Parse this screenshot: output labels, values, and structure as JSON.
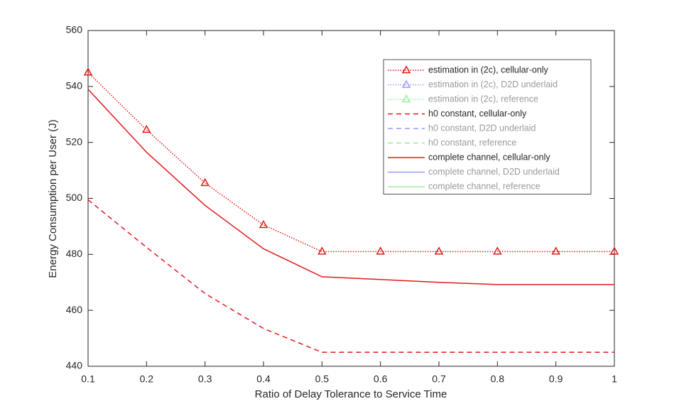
{
  "chart_data": {
    "type": "line",
    "xlabel": "Ratio of Delay Tolerance to Service Time",
    "ylabel": "Energy Consumption per User (J)",
    "x": [
      0.1,
      0.2,
      0.3,
      0.4,
      0.5,
      0.6,
      0.7,
      0.8,
      0.9,
      1
    ],
    "xlim": [
      0.1,
      1
    ],
    "xticks": [
      0.1,
      0.2,
      0.3,
      0.4,
      0.5,
      0.6,
      0.7,
      0.8,
      0.9,
      1
    ],
    "ylim": [
      440,
      560
    ],
    "yticks": [
      440,
      460,
      480,
      500,
      520,
      540,
      560
    ],
    "grid": false,
    "legend": "northeast",
    "series": [
      {
        "name": "estimation in (2c), cellular-only",
        "color": "#e31a1c",
        "linestyle": "dotted",
        "marker": "triangle",
        "visible": true,
        "values": [
          545,
          524.5,
          505.5,
          490.5,
          481,
          481,
          481,
          481,
          481,
          481
        ]
      },
      {
        "name": "estimation in (2c), D2D underlaid",
        "color": "#9999ff",
        "linestyle": "dotted",
        "marker": "triangle",
        "visible": false
      },
      {
        "name": "estimation in (2c), reference",
        "color": "#99ee99",
        "linestyle": "dotted",
        "marker": "triangle",
        "visible": false
      },
      {
        "name": "h0 constant, cellular-only",
        "color": "#e31a1c",
        "linestyle": "dashed",
        "marker": "none",
        "visible": true,
        "values": [
          499.5,
          482.5,
          466,
          453.5,
          445,
          445,
          445,
          445,
          445,
          445
        ]
      },
      {
        "name": "h0 constant, D2D underlaid",
        "color": "#9999ff",
        "linestyle": "dashed",
        "marker": "none",
        "visible": false
      },
      {
        "name": "h0 constant, reference",
        "color": "#99ee99",
        "linestyle": "dashed",
        "marker": "none",
        "visible": false
      },
      {
        "name": "complete channel, cellular-only",
        "color": "#e31a1c",
        "linestyle": "solid",
        "marker": "none",
        "visible": true,
        "values": [
          539,
          516.5,
          497.5,
          482,
          472,
          471,
          470,
          469.2,
          469.2,
          469.2
        ]
      },
      {
        "name": "complete channel, D2D underlaid",
        "color": "#9999ff",
        "linestyle": "solid",
        "marker": "none",
        "visible": false
      },
      {
        "name": "complete channel, reference",
        "color": "#99ee99",
        "linestyle": "solid",
        "marker": "none",
        "visible": false
      }
    ]
  }
}
